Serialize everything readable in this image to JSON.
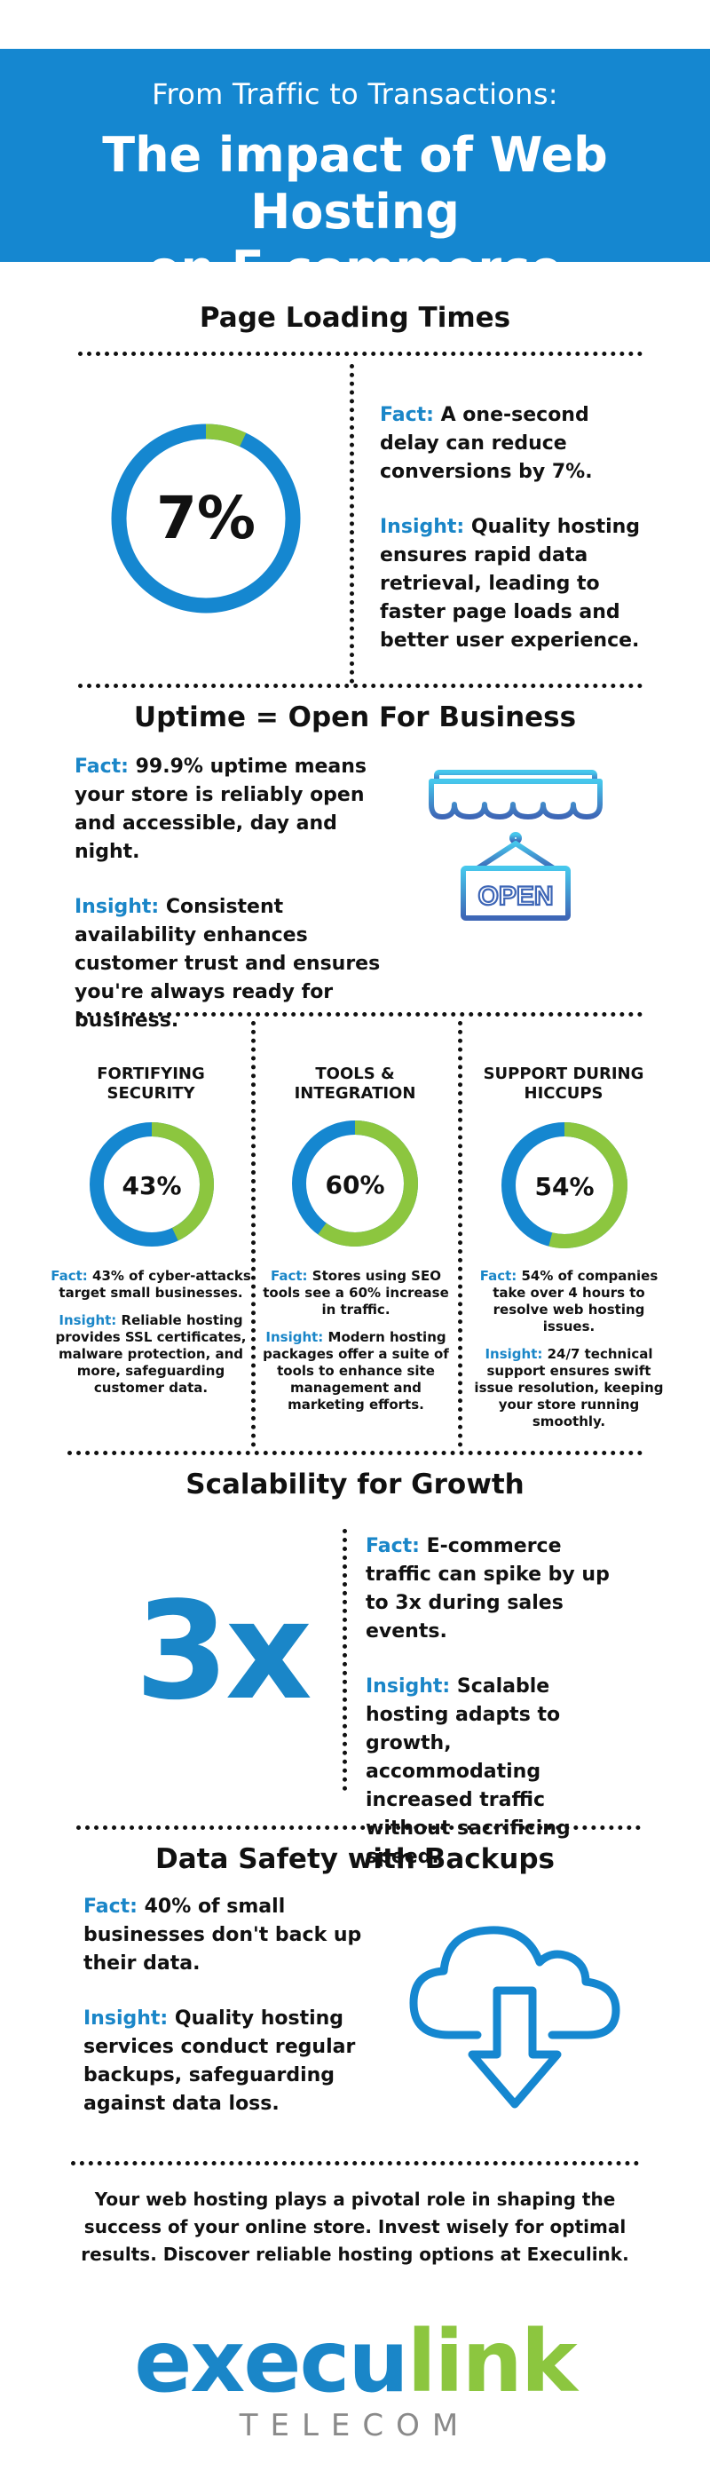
{
  "header": {
    "subtitle": "From Traffic to Transactions:",
    "title_line1": "The impact of Web Hosting",
    "title_line2": "on E-commerce"
  },
  "page_loading": {
    "title": "Page Loading Times",
    "stat": "7%",
    "ring_fraction": 0.07,
    "fact_label": "Fact:",
    "fact_text": "A one-second delay can reduce conversions by 7%.",
    "insight_label": "Insight:",
    "insight_text": "Quality hosting ensures rapid data retrieval, leading to faster page loads and better user experience."
  },
  "uptime": {
    "title": "Uptime = Open For Business",
    "fact_label": "Fact:",
    "fact_text": "99.9% uptime means your store is reliably open and accessible, day and night.",
    "insight_label": "Insight:",
    "insight_text": "Consistent availability enhances customer trust and ensures you're always ready for business.",
    "sign_text": "OPEN",
    "icon": "storefront-open-sign-icon"
  },
  "columns": [
    {
      "title_line1": "FORTIFYING",
      "title_line2": "SECURITY",
      "stat": "43%",
      "ring_fraction": 0.43,
      "fact_label": "Fact:",
      "fact_text": "43% of cyber-attacks target small businesses.",
      "insight_label": "Insight:",
      "insight_text": "Reliable hosting provides SSL certificates, malware protection, and more, safeguarding customer data."
    },
    {
      "title_line1": "TOOLS &",
      "title_line2": "INTEGRATION",
      "stat": "60%",
      "ring_fraction": 0.6,
      "fact_label": "Fact:",
      "fact_text": "Stores using SEO tools see a 60% increase in traffic.",
      "insight_label": "Insight:",
      "insight_text": "Modern hosting packages offer a suite of tools to enhance site management and marketing efforts."
    },
    {
      "title_line1": "SUPPORT DURING",
      "title_line2": "HICCUPS",
      "stat": "54%",
      "ring_fraction": 0.54,
      "fact_label": "Fact:",
      "fact_text": "54% of companies take over 4 hours to resolve web hosting issues.",
      "insight_label": "Insight:",
      "insight_text": "24/7 technical support ensures swift issue resolution, keeping your store running smoothly."
    }
  ],
  "scalability": {
    "title": "Scalability for Growth",
    "stat": "3x",
    "fact_label": "Fact:",
    "fact_text": "E-commerce traffic can spike by up to 3x during sales events.",
    "insight_label": "Insight:",
    "insight_text": "Scalable hosting adapts to growth, accommodating increased traffic without sacrificing speed."
  },
  "backups": {
    "title": "Data Safety with Backups",
    "fact_label": "Fact:",
    "fact_text": "40% of small businesses don't back up their data.",
    "insight_label": "Insight:",
    "insight_text": "Quality hosting services conduct regular backups, safeguarding against data loss.",
    "icon": "cloud-download-icon"
  },
  "closing": "Your web hosting plays a pivotal role in shaping the success of your online store. Invest wisely for optimal results. Discover reliable hosting options at Execulink.",
  "logo": {
    "part1": "execu",
    "part2": "link",
    "tagline": "TELECOM"
  },
  "colors": {
    "blue": "#1587d0",
    "green": "#8cc63f"
  }
}
